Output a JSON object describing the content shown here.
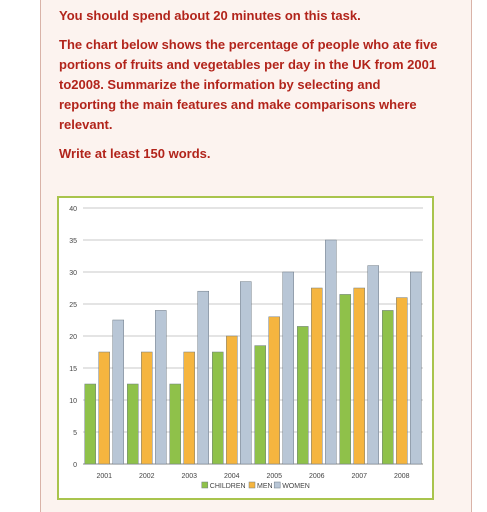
{
  "task": {
    "time_instruction": "You should spend about 20 minutes on this task.",
    "description": "The chart below shows the percentage of people who ate five portions of fruits and vegetables per day in the UK from 2001 to2008. Summarize the information by selecting and reporting the main features and make comparisons where relevant.",
    "word_count": "Write at least 150 words."
  },
  "chart_data": {
    "type": "bar",
    "title": "",
    "xlabel": "",
    "ylabel": "",
    "categories": [
      "2001",
      "2002",
      "2003",
      "2004",
      "2005",
      "2006",
      "2007",
      "2008"
    ],
    "series": [
      {
        "name": "CHILDREN",
        "color": "#8fc14a",
        "values": [
          12.5,
          12.5,
          12.5,
          17.5,
          18.5,
          21.5,
          26.5,
          24
        ]
      },
      {
        "name": "MEN",
        "color": "#f5b53f",
        "values": [
          17.5,
          17.5,
          17.5,
          20,
          23,
          27.5,
          27.5,
          26
        ]
      },
      {
        "name": "WOMEN",
        "color": "#b8c6d6",
        "values": [
          22.5,
          24,
          27,
          28.5,
          30,
          35,
          31,
          30
        ]
      }
    ],
    "yticks": [
      "0",
      "5",
      "10",
      "15",
      "20",
      "25",
      "30",
      "35",
      "40"
    ],
    "ylim": [
      0,
      40
    ],
    "grid": true,
    "legend_position": "bottom"
  }
}
